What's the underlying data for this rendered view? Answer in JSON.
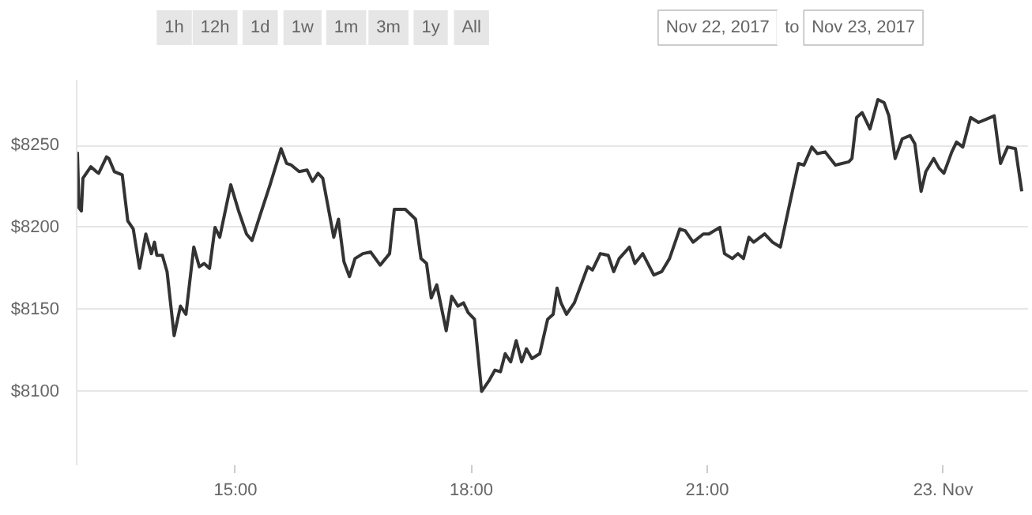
{
  "chart_data": {
    "type": "line",
    "annotations": [
      "1h",
      "12h",
      "1d",
      "1w",
      "1m",
      "3m",
      "1y",
      "All",
      "Nov 22, 2017",
      "to",
      "Nov 23, 2017"
    ],
    "series": [
      {
        "color": "#333333",
        "x": [
          12.99,
          13.01,
          13.04,
          13.06,
          13.16,
          13.23,
          13.26,
          13.36,
          13.39,
          13.46,
          13.56,
          13.63,
          13.7,
          13.78,
          13.86,
          13.93,
          13.97,
          14.0,
          14.07,
          14.13,
          14.22,
          14.3,
          14.37,
          14.47,
          14.54,
          14.6,
          14.67,
          14.74,
          14.8,
          14.94,
          15.04,
          15.14,
          15.21,
          15.31,
          15.44,
          15.58,
          15.65,
          15.71,
          15.81,
          15.91,
          15.98,
          16.05,
          16.11,
          16.25,
          16.31,
          16.38,
          16.45,
          16.52,
          16.62,
          16.72,
          16.84,
          16.96,
          17.02,
          17.16,
          17.29,
          17.36,
          17.43,
          17.49,
          17.56,
          17.68,
          17.75,
          17.83,
          17.9,
          17.96,
          18.04,
          18.13,
          18.23,
          18.3,
          18.37,
          18.43,
          18.5,
          18.57,
          18.64,
          18.7,
          18.77,
          18.87,
          18.97,
          19.04,
          19.09,
          19.14,
          19.21,
          19.31,
          19.48,
          19.54,
          19.64,
          19.74,
          19.81,
          19.88,
          20.01,
          20.08,
          20.18,
          20.32,
          20.42,
          20.52,
          20.65,
          20.72,
          20.82,
          20.95,
          21.02,
          21.16,
          21.22,
          21.32,
          21.39,
          21.46,
          21.53,
          21.59,
          21.73,
          21.83,
          21.93,
          22.06,
          22.16,
          22.23,
          22.33,
          22.4,
          22.5,
          22.63,
          22.8,
          22.84,
          22.9,
          22.97,
          23.07,
          23.17,
          23.25,
          23.31,
          23.39,
          23.48,
          23.58,
          23.64,
          23.72,
          23.78,
          23.88,
          23.95,
          24.01,
          24.11,
          24.17,
          24.25,
          24.35,
          24.45,
          24.55,
          24.65,
          24.73,
          24.82,
          24.92,
          25.0
        ],
        "values": [
          8246,
          8212,
          8210,
          8230,
          8237,
          8234,
          8233,
          8243,
          8242,
          8234,
          8232,
          8204,
          8199,
          8175,
          8196,
          8184,
          8191,
          8183,
          8183,
          8173,
          8134,
          8152,
          8147,
          8188,
          8176,
          8178,
          8175,
          8200,
          8194,
          8226,
          8210,
          8196,
          8192,
          8207,
          8226,
          8248,
          8239,
          8238,
          8234,
          8235,
          8228,
          8233,
          8230,
          8194,
          8205,
          8179,
          8170,
          8181,
          8184,
          8185,
          8177,
          8184,
          8211,
          8211,
          8205,
          8181,
          8178,
          8157,
          8165,
          8137,
          8158,
          8152,
          8154,
          8148,
          8144,
          8100,
          8107,
          8113,
          8112,
          8123,
          8118,
          8131,
          8118,
          8126,
          8120,
          8123,
          8144,
          8147,
          8163,
          8154,
          8147,
          8154,
          8176,
          8174,
          8184,
          8183,
          8173,
          8181,
          8188,
          8178,
          8184,
          8171,
          8173,
          8181,
          8199,
          8198,
          8191,
          8196,
          8196,
          8200,
          8184,
          8181,
          8184,
          8181,
          8194,
          8191,
          8196,
          8191,
          8188,
          8217,
          8239,
          8238,
          8249,
          8245,
          8246,
          8238,
          8240,
          8242,
          8267,
          8270,
          8260,
          8278,
          8276,
          8268,
          8242,
          8254,
          8256,
          8251,
          8222,
          8234,
          8242,
          8236,
          8233,
          8246,
          8252,
          8249,
          8267,
          8264,
          8266,
          8268,
          8239,
          8249,
          8248,
          8222
        ]
      }
    ],
    "xlim": [
      12.98,
      25.08
    ],
    "ylim": [
      8055,
      8290
    ],
    "xticks": [
      {
        "value": 15,
        "label": "15:00"
      },
      {
        "value": 18,
        "label": "18:00"
      },
      {
        "value": 21,
        "label": "21:00"
      },
      {
        "value": 24,
        "label": "23. Nov"
      }
    ],
    "yticks": [
      {
        "value": 8100,
        "label": "$8100"
      },
      {
        "value": 8150,
        "label": "$8150"
      },
      {
        "value": 8200,
        "label": "$8200"
      },
      {
        "value": 8250,
        "label": "$8250"
      }
    ],
    "grid": "y"
  }
}
